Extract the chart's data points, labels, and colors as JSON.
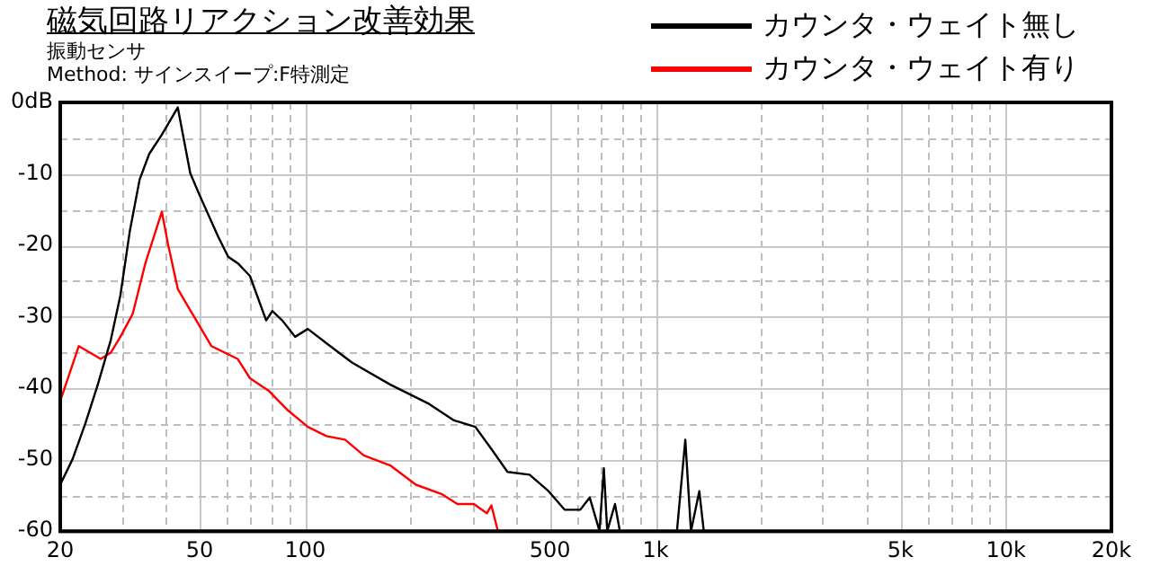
{
  "chart_data": {
    "type": "line",
    "title": "磁気回路リアクション改善効果",
    "subtitle": "振動センサ",
    "annotations": [
      "Method:  サインスイープ:F特測定"
    ],
    "log": "x",
    "xlim": [
      20,
      20000
    ],
    "ylim": [
      -60,
      0
    ],
    "xticks": [
      20,
      {
        "value": 30,
        "label": null
      },
      {
        "value": 40,
        "label": null
      },
      50,
      {
        "value": 60,
        "label": null
      },
      {
        "value": 70,
        "label": null
      },
      {
        "value": 80,
        "label": null
      },
      {
        "value": 90,
        "label": null
      },
      100,
      {
        "value": 200,
        "label": null
      },
      {
        "value": 300,
        "label": null
      },
      {
        "value": 400,
        "label": null
      },
      500,
      {
        "value": 600,
        "label": null
      },
      {
        "value": 700,
        "label": null
      },
      {
        "value": 800,
        "label": null
      },
      {
        "value": 900,
        "label": null
      },
      {
        "value": 1000,
        "label": "1k"
      },
      {
        "value": 2000,
        "label": null
      },
      {
        "value": 3000,
        "label": null
      },
      {
        "value": 4000,
        "label": null
      },
      {
        "value": 5000,
        "label": "5k"
      },
      {
        "value": 6000,
        "label": null
      },
      {
        "value": 7000,
        "label": null
      },
      {
        "value": 8000,
        "label": null
      },
      {
        "value": 9000,
        "label": null
      },
      {
        "value": 10000,
        "label": "10k"
      },
      {
        "value": 20000,
        "label": "20k"
      }
    ],
    "yticks": [
      -60,
      {
        "value": -55,
        "label": null
      },
      -50,
      {
        "value": -45,
        "label": null
      },
      -40,
      {
        "value": -35,
        "label": null
      },
      -30,
      {
        "value": -25,
        "label": null
      },
      -20,
      {
        "value": -15,
        "label": null
      },
      -10,
      {
        "value": -5,
        "label": null
      },
      {
        "value": 0,
        "label": "0dB"
      }
    ],
    "grid": true,
    "legend": "top right",
    "marker": "none",
    "line_style": "solid",
    "series": [
      {
        "name": "カウンタ・ウェイト無し",
        "color": "#000000",
        "x": [
          20,
          21.7,
          23.6,
          25.6,
          27.9,
          29.7,
          31.6,
          33.7,
          35.9,
          39,
          43.3,
          47,
          50,
          56.6,
          60.3,
          64.2,
          69.6,
          77.4,
          80.6,
          86,
          93.6,
          101.8,
          115,
          136,
          175,
          226,
          266,
          306,
          340,
          378,
          437,
          495,
          550,
          610,
          649,
          692,
          712,
          728,
          766,
          791,
          900,
          1151,
          1216,
          1262,
          1333,
          1373
        ],
        "values": [
          -53.5,
          -49.9,
          -44.9,
          -39.5,
          -33.2,
          -27,
          -18,
          -10.8,
          -7.2,
          -4.5,
          -0.7,
          -9.9,
          -13,
          -18.9,
          -21.6,
          -22.5,
          -24.3,
          -30.5,
          -29.2,
          -30.5,
          -32.8,
          -31.7,
          -33.7,
          -36.4,
          -39.5,
          -42.2,
          -44.5,
          -45.4,
          -48.5,
          -51.7,
          -52.1,
          -54.4,
          -57,
          -57,
          -55.3,
          -60,
          -51.2,
          -60,
          -56.2,
          -60,
          null,
          -60,
          -47.2,
          -60,
          -54.4,
          -60
        ]
      },
      {
        "name": "カウンタ・ウェイト有り",
        "color": "#ff0000",
        "x": [
          20,
          22.6,
          26.1,
          27.9,
          29.7,
          32.2,
          35,
          39,
          40.6,
          43.3,
          46,
          50.8,
          54,
          64.2,
          69.6,
          78.9,
          89.3,
          101.8,
          115,
          130,
          147,
          175,
          207,
          245,
          272,
          303,
          330,
          340,
          355
        ],
        "values": [
          -41.8,
          -34.1,
          -35.9,
          -35,
          -32.8,
          -29.6,
          -22.5,
          -15.3,
          -19.8,
          -26.1,
          -28.3,
          -31.9,
          -34.1,
          -35.9,
          -38.6,
          -40.4,
          -43.1,
          -45.4,
          -46.7,
          -47.2,
          -49.4,
          -50.8,
          -53.5,
          -54.8,
          -56.2,
          -56.2,
          -57.5,
          -56.4,
          -60
        ]
      }
    ]
  }
}
